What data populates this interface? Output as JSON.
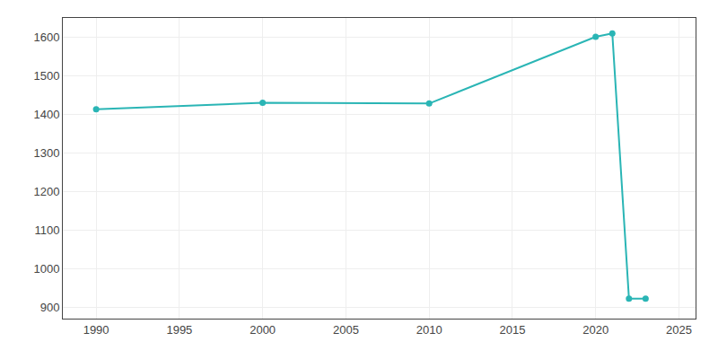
{
  "chart_data": {
    "type": "line",
    "x": [
      1990,
      2000,
      2010,
      2020,
      2021,
      2022,
      2023
    ],
    "values": [
      1413,
      1430,
      1428,
      1601,
      1610,
      922,
      922
    ],
    "color": "#2ab5b5",
    "marker": "circle",
    "line_style": "solid",
    "xlim": [
      1988,
      2026
    ],
    "ylim": [
      870,
      1650
    ],
    "xticks": [
      1990,
      1995,
      2000,
      2005,
      2010,
      2015,
      2020,
      2025
    ],
    "yticks": [
      900,
      1000,
      1100,
      1200,
      1300,
      1400,
      1500,
      1600
    ],
    "grid": true
  }
}
